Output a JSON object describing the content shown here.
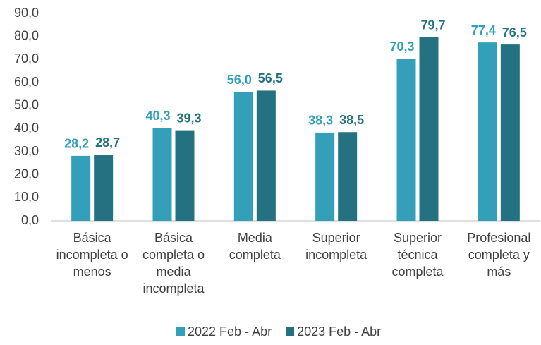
{
  "chart_data": {
    "type": "bar",
    "categories": [
      "Básica incompleta o menos",
      "Básica completa o media incompleta",
      "Media completa",
      "Superior incompleta",
      "Superior técnica completa",
      "Profesional completa y más"
    ],
    "series": [
      {
        "name": "2022 Feb - Abr",
        "color": "#349fb8",
        "values": [
          28.2,
          40.3,
          56.0,
          38.3,
          70.3,
          77.4
        ],
        "value_labels": [
          "28,2",
          "40,3",
          "56,0",
          "38,3",
          "70,3",
          "77,4"
        ]
      },
      {
        "name": "2023 Feb - Abr",
        "color": "#247281",
        "values": [
          28.7,
          39.3,
          56.5,
          38.5,
          79.7,
          76.5
        ],
        "value_labels": [
          "28,7",
          "39,3",
          "56,5",
          "38,5",
          "79,7",
          "76,5"
        ]
      }
    ],
    "ylim": [
      0,
      90
    ],
    "yticks": [
      {
        "value": 0,
        "label": "0,0"
      },
      {
        "value": 10,
        "label": "10,0"
      },
      {
        "value": 20,
        "label": "20,0"
      },
      {
        "value": 30,
        "label": "30,0"
      },
      {
        "value": 40,
        "label": "40,0"
      },
      {
        "value": 50,
        "label": "50,0"
      },
      {
        "value": 60,
        "label": "60,0"
      },
      {
        "value": 70,
        "label": "70,0"
      },
      {
        "value": 80,
        "label": "80,0"
      },
      {
        "value": 90,
        "label": "90,0"
      }
    ],
    "grid": false,
    "legend": "bottom"
  }
}
